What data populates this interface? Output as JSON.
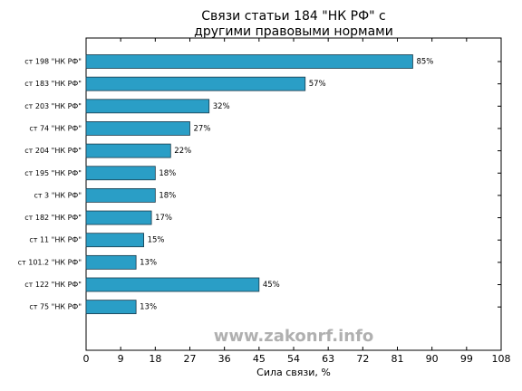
{
  "chart_data": {
    "type": "barh",
    "title": [
      "Связи статьи 184 \"НК РФ\" с",
      "другими правовыми нормами"
    ],
    "categories": [
      "ст 198 \"НК РФ\"",
      "ст 183 \"НК РФ\"",
      "ст 203 \"НК РФ\"",
      "ст 74 \"НК РФ\"",
      "ст 204 \"НК РФ\"",
      "ст 195 \"НК РФ\"",
      "ст 3 \"НК РФ\"",
      "ст 182 \"НК РФ\"",
      "ст 11 \"НК РФ\"",
      "ст 101.2 \"НК РФ\"",
      "ст 122 \"НК РФ\"",
      "ст 75 \"НК РФ\""
    ],
    "values": [
      85,
      57,
      32,
      27,
      22,
      18,
      18,
      17,
      15,
      13,
      45,
      13
    ],
    "value_labels": [
      "85%",
      "57%",
      "32%",
      "27%",
      "22%",
      "18%",
      "18%",
      "17%",
      "15%",
      "13%",
      "45%",
      "13%"
    ],
    "color": "#2a9ec6",
    "xlabel": "Сила связи, %",
    "xlim": [
      0,
      108
    ],
    "xticks": [
      0,
      9,
      18,
      27,
      36,
      45,
      54,
      63,
      72,
      81,
      90,
      99,
      108
    ],
    "watermark": "www.zakonrf.info"
  }
}
